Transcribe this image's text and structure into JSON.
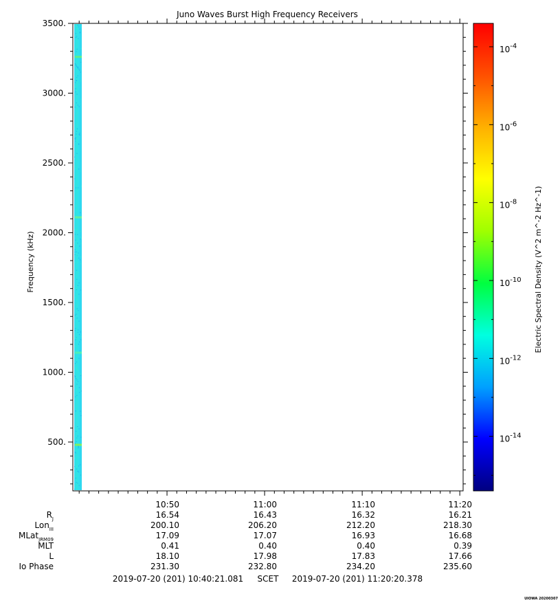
{
  "chart_data": {
    "type": "heatmap",
    "title": "Juno Waves Burst High Frequency Receivers",
    "ylabel": "Frequency (kHz)",
    "ylim": [
      150,
      3500
    ],
    "y_ticks": [
      {
        "value": 500,
        "label": "500."
      },
      {
        "value": 1000,
        "label": "1000."
      },
      {
        "value": 1500,
        "label": "1500."
      },
      {
        "value": 2000,
        "label": "2000."
      },
      {
        "value": 2500,
        "label": "2500."
      },
      {
        "value": 3000,
        "label": "3000."
      },
      {
        "value": 3500,
        "label": "3500."
      }
    ],
    "x_ticks": [
      "10:50",
      "11:00",
      "11:10",
      "11:20"
    ],
    "colorbar": {
      "label": "Electric Spectral Density (V^2 m^-2 Hz^-1)",
      "range_exponent": [
        -15.4,
        -3.4
      ],
      "ticks": [
        {
          "exponent": -4,
          "label": "10-4"
        },
        {
          "exponent": -6,
          "label": "10-6"
        },
        {
          "exponent": -8,
          "label": "10-8"
        },
        {
          "exponent": -10,
          "label": "10-10"
        },
        {
          "exponent": -12,
          "label": "10-12"
        },
        {
          "exponent": -14,
          "label": "10-14"
        }
      ],
      "colors": [
        "#000080",
        "#0000ff",
        "#00a0ff",
        "#00ffe0",
        "#00ff40",
        "#a0ff00",
        "#ffff00",
        "#ffb000",
        "#ff5000",
        "#ff0000"
      ]
    },
    "data_strip": {
      "description_color": "#29e8e8",
      "spectral_density_exponent_approx": -11.5,
      "frequency_range": [
        150,
        3500
      ]
    },
    "ephemeris": {
      "rows": [
        {
          "label": "RJ",
          "main": "R",
          "sub": "J",
          "values": [
            "16.54",
            "16.43",
            "16.32",
            "16.21"
          ]
        },
        {
          "label": "LonIII",
          "main": "Lon",
          "sub": "III",
          "values": [
            "200.10",
            "206.20",
            "212.20",
            "218.30"
          ]
        },
        {
          "label": "MLatJRM09",
          "main": "MLat",
          "sub": "JRM09",
          "values": [
            "17.09",
            "17.07",
            "16.93",
            "16.68"
          ]
        },
        {
          "label": "MLT",
          "main": "MLT",
          "sub": "",
          "values": [
            "0.41",
            "0.40",
            "0.40",
            "0.39"
          ]
        },
        {
          "label": "L",
          "main": "L",
          "sub": "",
          "values": [
            "18.10",
            "17.98",
            "17.83",
            "17.66"
          ]
        },
        {
          "label": "Io Phase",
          "main": "Io Phase",
          "sub": "",
          "values": [
            "231.30",
            "232.80",
            "234.20",
            "235.60"
          ]
        }
      ]
    },
    "time_range": {
      "start": "2019-07-20 (201) 10:40:21.081",
      "mid": "SCET",
      "end": "2019-07-20 (201) 11:20:20.378"
    },
    "credit": "UIOWA 20200307"
  }
}
